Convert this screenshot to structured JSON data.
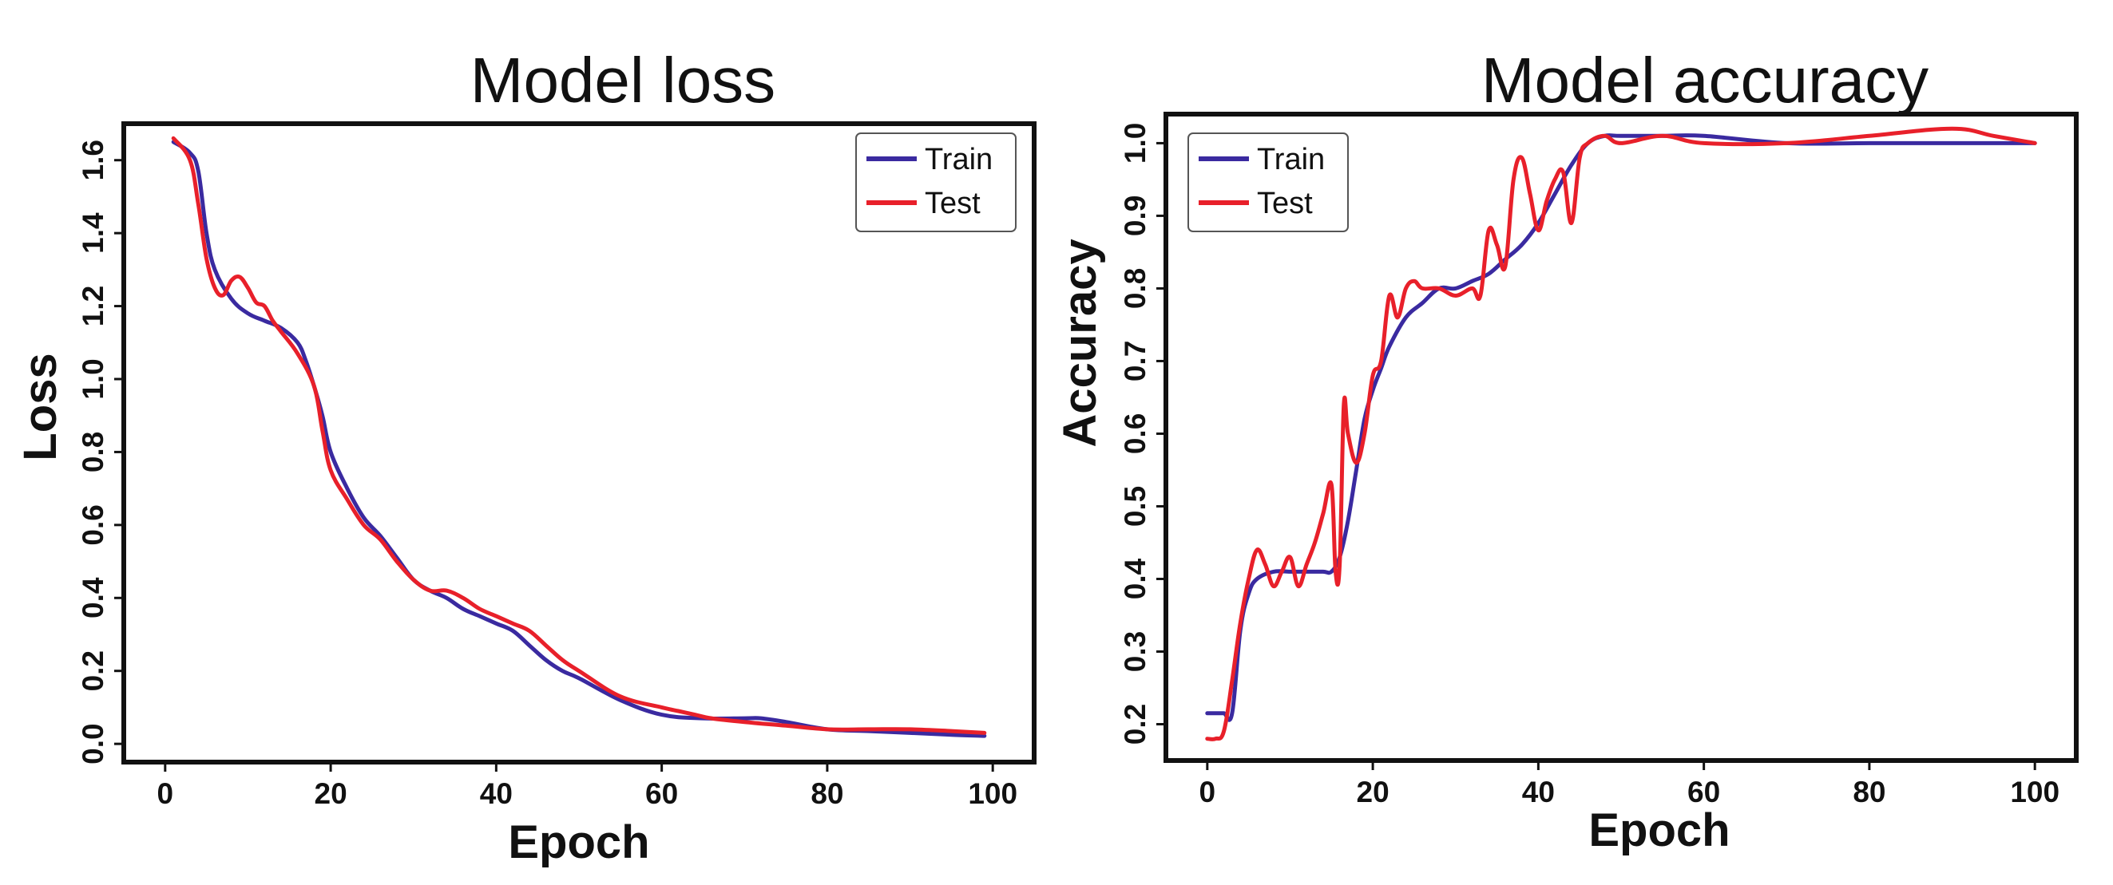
{
  "chart_data": [
    {
      "type": "line",
      "title": "Model loss",
      "xlabel": "Epoch",
      "ylabel": "Loss",
      "xlim": [
        -5,
        105
      ],
      "ylim": [
        -0.05,
        1.7
      ],
      "xticks": [
        0,
        20,
        40,
        60,
        80,
        100
      ],
      "xtick_labels": [
        "0",
        "20",
        "40",
        "60",
        "80",
        "100"
      ],
      "yticks": [
        0.0,
        0.2,
        0.4,
        0.6,
        0.8,
        1.0,
        1.2,
        1.4,
        1.6
      ],
      "ytick_labels": [
        "0.0",
        "0.2",
        "0.4",
        "0.6",
        "0.8",
        "1.0",
        "1.2",
        "1.4",
        "1.6"
      ],
      "legend_position": "top-right",
      "series": [
        {
          "name": "Train",
          "color": "#3a2aa0",
          "x": [
            1,
            3,
            4,
            5,
            6,
            8,
            10,
            12,
            14,
            16,
            17,
            18,
            19,
            20,
            22,
            24,
            26,
            28,
            30,
            32,
            34,
            36,
            38,
            40,
            42,
            44,
            46,
            48,
            50,
            55,
            60,
            65,
            70,
            72,
            75,
            80,
            85,
            90,
            95,
            99
          ],
          "y": [
            1.65,
            1.62,
            1.57,
            1.4,
            1.3,
            1.22,
            1.18,
            1.16,
            1.14,
            1.1,
            1.05,
            0.98,
            0.9,
            0.8,
            0.7,
            0.62,
            0.57,
            0.51,
            0.45,
            0.42,
            0.4,
            0.37,
            0.35,
            0.33,
            0.31,
            0.27,
            0.23,
            0.2,
            0.18,
            0.12,
            0.08,
            0.07,
            0.07,
            0.07,
            0.06,
            0.04,
            0.035,
            0.03,
            0.025,
            0.022
          ]
        },
        {
          "name": "Test",
          "color": "#e8202a",
          "x": [
            1,
            3,
            4,
            5,
            6,
            7,
            8,
            9,
            10,
            11,
            12,
            13,
            14,
            16,
            18,
            19,
            20,
            22,
            24,
            26,
            28,
            30,
            32,
            34,
            36,
            38,
            40,
            42,
            44,
            46,
            48,
            50,
            55,
            60,
            62,
            64,
            66,
            70,
            75,
            80,
            85,
            90,
            95,
            99
          ],
          "y": [
            1.66,
            1.6,
            1.48,
            1.33,
            1.25,
            1.23,
            1.27,
            1.28,
            1.25,
            1.21,
            1.2,
            1.16,
            1.13,
            1.07,
            0.98,
            0.86,
            0.75,
            0.67,
            0.6,
            0.56,
            0.5,
            0.45,
            0.42,
            0.42,
            0.4,
            0.37,
            0.35,
            0.33,
            0.31,
            0.27,
            0.23,
            0.2,
            0.13,
            0.1,
            0.09,
            0.08,
            0.07,
            0.06,
            0.05,
            0.04,
            0.04,
            0.04,
            0.035,
            0.03
          ]
        }
      ]
    },
    {
      "type": "line",
      "title": "Model accuracy",
      "xlabel": "Epoch",
      "ylabel": "Accuracy",
      "xlim": [
        -5,
        105
      ],
      "ylim": [
        0.15,
        1.04
      ],
      "xticks": [
        0,
        20,
        40,
        60,
        80,
        100
      ],
      "xtick_labels": [
        "0",
        "20",
        "40",
        "60",
        "80",
        "100"
      ],
      "yticks": [
        0.2,
        0.3,
        0.4,
        0.5,
        0.6,
        0.7,
        0.8,
        0.9,
        1.0
      ],
      "ytick_labels": [
        "0.2",
        "0.3",
        "0.4",
        "0.5",
        "0.6",
        "0.7",
        "0.8",
        "0.9",
        "1.0"
      ],
      "legend_position": "top-left",
      "series": [
        {
          "name": "Train",
          "color": "#3a2aa0",
          "x": [
            0,
            1,
            2,
            3,
            4,
            5,
            6,
            8,
            10,
            12,
            14,
            15,
            16,
            17,
            18,
            19,
            20,
            21,
            22,
            24,
            26,
            28,
            30,
            32,
            34,
            36,
            38,
            40,
            42,
            44,
            46,
            48,
            50,
            55,
            60,
            70,
            80,
            90,
            100
          ],
          "y": [
            0.215,
            0.215,
            0.215,
            0.215,
            0.33,
            0.38,
            0.4,
            0.41,
            0.41,
            0.41,
            0.41,
            0.41,
            0.43,
            0.48,
            0.55,
            0.62,
            0.66,
            0.69,
            0.72,
            0.76,
            0.78,
            0.8,
            0.8,
            0.81,
            0.82,
            0.84,
            0.86,
            0.89,
            0.93,
            0.97,
            1.0,
            1.01,
            1.01,
            1.01,
            1.01,
            1.0,
            1.0,
            1.0,
            1.0
          ]
        },
        {
          "name": "Test",
          "color": "#e8202a",
          "x": [
            0,
            1,
            2,
            3,
            4,
            5,
            6,
            7,
            8,
            9,
            10,
            11,
            12,
            13,
            14,
            15,
            15.5,
            16,
            16.5,
            17,
            18,
            19,
            20,
            21,
            22,
            23,
            24,
            25,
            26,
            28,
            30,
            32,
            33,
            34,
            35,
            36,
            37,
            38,
            39,
            40,
            41,
            42,
            43,
            44,
            45,
            46,
            48,
            50,
            55,
            60,
            70,
            80,
            90,
            95,
            100
          ],
          "y": [
            0.18,
            0.18,
            0.19,
            0.26,
            0.34,
            0.4,
            0.44,
            0.42,
            0.39,
            0.41,
            0.43,
            0.39,
            0.42,
            0.45,
            0.49,
            0.53,
            0.41,
            0.42,
            0.64,
            0.6,
            0.56,
            0.6,
            0.68,
            0.7,
            0.79,
            0.76,
            0.8,
            0.81,
            0.8,
            0.8,
            0.79,
            0.8,
            0.79,
            0.88,
            0.86,
            0.83,
            0.95,
            0.98,
            0.93,
            0.88,
            0.92,
            0.95,
            0.96,
            0.89,
            0.98,
            1.0,
            1.01,
            1.0,
            1.01,
            1.0,
            1.0,
            1.01,
            1.02,
            1.01,
            1.0
          ]
        }
      ]
    }
  ]
}
